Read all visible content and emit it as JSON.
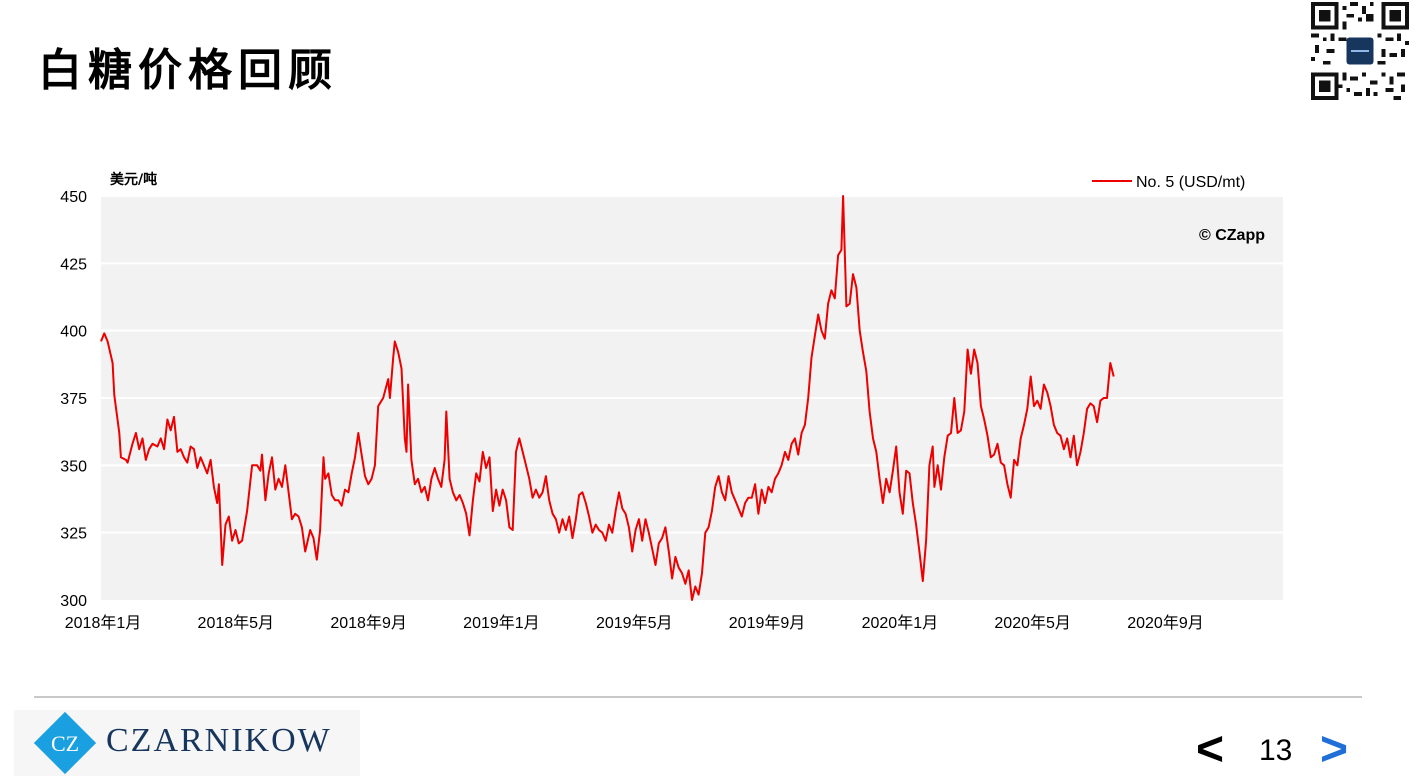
{
  "slide": {
    "title": "白糖价格回顾",
    "page_number": "13",
    "prev_label": "<",
    "next_label": ">",
    "logo_text": "CZARNIKOW",
    "logo_mark": "CZ"
  },
  "colors": {
    "series": "#ee0000",
    "plot_bg": "#f2f2f2",
    "logo_blue": "#1aa0e0",
    "logo_navy": "#17365d",
    "next_arrow": "#1f6fd6"
  },
  "chart_data": {
    "type": "line",
    "title": "",
    "ylabel": "美元/吨",
    "xlabel": "",
    "ylim": [
      300,
      450
    ],
    "yticks": [
      300,
      325,
      350,
      375,
      400,
      425,
      450
    ],
    "xlim": [
      0,
      35.6
    ],
    "xticks": [
      {
        "value": 0,
        "label": "2018年1月"
      },
      {
        "value": 4,
        "label": "2018年5月"
      },
      {
        "value": 8,
        "label": "2018年9月"
      },
      {
        "value": 12,
        "label": "2019年1月"
      },
      {
        "value": 16,
        "label": "2019年5月"
      },
      {
        "value": 20,
        "label": "2019年9月"
      },
      {
        "value": 24,
        "label": "2020年1月"
      },
      {
        "value": 28,
        "label": "2020年5月"
      },
      {
        "value": 32,
        "label": "2020年9月"
      }
    ],
    "grid": true,
    "legend_position": "top-right",
    "annotation": "© CZapp",
    "series": [
      {
        "name": "No. 5 (USD/mt)",
        "color": "#ee0000",
        "points": [
          [
            0.0,
            396
          ],
          [
            0.1,
            399
          ],
          [
            0.2,
            396
          ],
          [
            0.35,
            388
          ],
          [
            0.4,
            376
          ],
          [
            0.55,
            362
          ],
          [
            0.6,
            353
          ],
          [
            0.75,
            352
          ],
          [
            0.8,
            351
          ],
          [
            0.95,
            358
          ],
          [
            1.05,
            362
          ],
          [
            1.15,
            356
          ],
          [
            1.25,
            360
          ],
          [
            1.35,
            352
          ],
          [
            1.45,
            356
          ],
          [
            1.55,
            358
          ],
          [
            1.7,
            357
          ],
          [
            1.8,
            360
          ],
          [
            1.9,
            356
          ],
          [
            2.0,
            367
          ],
          [
            2.1,
            363
          ],
          [
            2.2,
            368
          ],
          [
            2.3,
            355
          ],
          [
            2.4,
            356
          ],
          [
            2.5,
            353
          ],
          [
            2.6,
            351
          ],
          [
            2.7,
            357
          ],
          [
            2.8,
            356
          ],
          [
            2.9,
            349
          ],
          [
            3.0,
            353
          ],
          [
            3.1,
            350
          ],
          [
            3.2,
            347
          ],
          [
            3.3,
            352
          ],
          [
            3.4,
            342
          ],
          [
            3.5,
            336
          ],
          [
            3.55,
            343
          ],
          [
            3.65,
            313
          ],
          [
            3.75,
            328
          ],
          [
            3.85,
            331
          ],
          [
            3.95,
            322
          ],
          [
            4.05,
            326
          ],
          [
            4.15,
            321
          ],
          [
            4.25,
            322
          ],
          [
            4.4,
            333
          ],
          [
            4.55,
            350
          ],
          [
            4.7,
            350
          ],
          [
            4.8,
            348
          ],
          [
            4.85,
            354
          ],
          [
            4.95,
            337
          ],
          [
            5.05,
            347
          ],
          [
            5.15,
            353
          ],
          [
            5.25,
            341
          ],
          [
            5.35,
            345
          ],
          [
            5.45,
            342
          ],
          [
            5.55,
            350
          ],
          [
            5.65,
            340
          ],
          [
            5.75,
            330
          ],
          [
            5.85,
            332
          ],
          [
            5.95,
            331
          ],
          [
            6.05,
            327
          ],
          [
            6.15,
            318
          ],
          [
            6.3,
            326
          ],
          [
            6.4,
            323
          ],
          [
            6.5,
            315
          ],
          [
            6.6,
            326
          ],
          [
            6.7,
            353
          ],
          [
            6.75,
            345
          ],
          [
            6.85,
            347
          ],
          [
            6.95,
            339
          ],
          [
            7.05,
            337
          ],
          [
            7.15,
            337
          ],
          [
            7.25,
            335
          ],
          [
            7.35,
            341
          ],
          [
            7.45,
            340
          ],
          [
            7.55,
            347
          ],
          [
            7.65,
            353
          ],
          [
            7.75,
            362
          ],
          [
            7.85,
            354
          ],
          [
            7.95,
            346
          ],
          [
            8.05,
            343
          ],
          [
            8.15,
            345
          ],
          [
            8.25,
            350
          ],
          [
            8.35,
            372
          ],
          [
            8.5,
            375
          ],
          [
            8.65,
            382
          ],
          [
            8.7,
            375
          ],
          [
            8.8,
            390
          ],
          [
            8.85,
            396
          ],
          [
            8.95,
            392
          ],
          [
            9.05,
            386
          ],
          [
            9.15,
            360
          ],
          [
            9.2,
            355
          ],
          [
            9.25,
            380
          ],
          [
            9.35,
            352
          ],
          [
            9.45,
            343
          ],
          [
            9.55,
            345
          ],
          [
            9.65,
            340
          ],
          [
            9.75,
            342
          ],
          [
            9.85,
            337
          ],
          [
            9.95,
            345
          ],
          [
            10.05,
            349
          ],
          [
            10.15,
            345
          ],
          [
            10.25,
            342
          ],
          [
            10.35,
            352
          ],
          [
            10.4,
            370
          ],
          [
            10.5,
            345
          ],
          [
            10.6,
            340
          ],
          [
            10.7,
            337
          ],
          [
            10.8,
            339
          ],
          [
            10.9,
            336
          ],
          [
            11.0,
            332
          ],
          [
            11.1,
            324
          ],
          [
            11.2,
            337
          ],
          [
            11.3,
            347
          ],
          [
            11.4,
            344
          ],
          [
            11.5,
            355
          ],
          [
            11.6,
            349
          ],
          [
            11.7,
            353
          ],
          [
            11.8,
            333
          ],
          [
            11.9,
            341
          ],
          [
            12.0,
            335
          ],
          [
            12.1,
            341
          ],
          [
            12.2,
            337
          ],
          [
            12.3,
            327
          ],
          [
            12.4,
            326
          ],
          [
            12.5,
            355
          ],
          [
            12.6,
            360
          ],
          [
            12.7,
            355
          ],
          [
            12.8,
            350
          ],
          [
            12.9,
            345
          ],
          [
            13.0,
            338
          ],
          [
            13.1,
            341
          ],
          [
            13.2,
            338
          ],
          [
            13.3,
            340
          ],
          [
            13.4,
            346
          ],
          [
            13.5,
            337
          ],
          [
            13.6,
            332
          ],
          [
            13.7,
            330
          ],
          [
            13.8,
            325
          ],
          [
            13.9,
            330
          ],
          [
            14.0,
            326
          ],
          [
            14.1,
            331
          ],
          [
            14.2,
            323
          ],
          [
            14.3,
            330
          ],
          [
            14.4,
            339
          ],
          [
            14.5,
            340
          ],
          [
            14.6,
            336
          ],
          [
            14.7,
            331
          ],
          [
            14.8,
            325
          ],
          [
            14.9,
            328
          ],
          [
            15.0,
            326
          ],
          [
            15.1,
            325
          ],
          [
            15.2,
            322
          ],
          [
            15.3,
            328
          ],
          [
            15.4,
            325
          ],
          [
            15.5,
            333
          ],
          [
            15.6,
            340
          ],
          [
            15.7,
            334
          ],
          [
            15.8,
            332
          ],
          [
            15.9,
            327
          ],
          [
            16.0,
            318
          ],
          [
            16.1,
            326
          ],
          [
            16.2,
            330
          ],
          [
            16.3,
            322
          ],
          [
            16.4,
            330
          ],
          [
            16.5,
            325
          ],
          [
            16.6,
            319
          ],
          [
            16.7,
            313
          ],
          [
            16.8,
            321
          ],
          [
            16.9,
            323
          ],
          [
            17.0,
            327
          ],
          [
            17.1,
            318
          ],
          [
            17.2,
            308
          ],
          [
            17.3,
            316
          ],
          [
            17.4,
            312
          ],
          [
            17.5,
            310
          ],
          [
            17.6,
            306
          ],
          [
            17.7,
            311
          ],
          [
            17.8,
            300
          ],
          [
            17.9,
            305
          ],
          [
            18.0,
            302
          ],
          [
            18.1,
            310
          ],
          [
            18.2,
            325
          ],
          [
            18.3,
            327
          ],
          [
            18.4,
            333
          ],
          [
            18.5,
            342
          ],
          [
            18.6,
            346
          ],
          [
            18.7,
            340
          ],
          [
            18.8,
            337
          ],
          [
            18.9,
            346
          ],
          [
            19.0,
            340
          ],
          [
            19.1,
            337
          ],
          [
            19.2,
            334
          ],
          [
            19.3,
            331
          ],
          [
            19.4,
            336
          ],
          [
            19.5,
            338
          ],
          [
            19.6,
            338
          ],
          [
            19.7,
            343
          ],
          [
            19.8,
            332
          ],
          [
            19.9,
            341
          ],
          [
            20.0,
            336
          ],
          [
            20.1,
            342
          ],
          [
            20.2,
            340
          ],
          [
            20.3,
            345
          ],
          [
            20.4,
            347
          ],
          [
            20.5,
            350
          ],
          [
            20.6,
            355
          ],
          [
            20.7,
            352
          ],
          [
            20.8,
            358
          ],
          [
            20.9,
            360
          ],
          [
            21.0,
            354
          ],
          [
            21.1,
            362
          ],
          [
            21.2,
            365
          ],
          [
            21.3,
            375
          ],
          [
            21.4,
            390
          ],
          [
            21.5,
            398
          ],
          [
            21.6,
            406
          ],
          [
            21.7,
            400
          ],
          [
            21.8,
            397
          ],
          [
            21.9,
            410
          ],
          [
            22.0,
            415
          ],
          [
            22.1,
            412
          ],
          [
            22.2,
            428
          ],
          [
            22.3,
            430
          ],
          [
            22.35,
            450
          ],
          [
            22.45,
            409
          ],
          [
            22.55,
            410
          ],
          [
            22.65,
            421
          ],
          [
            22.75,
            416
          ],
          [
            22.85,
            400
          ],
          [
            22.95,
            392
          ],
          [
            23.05,
            385
          ],
          [
            23.15,
            370
          ],
          [
            23.25,
            360
          ],
          [
            23.35,
            355
          ],
          [
            23.45,
            345
          ],
          [
            23.55,
            336
          ],
          [
            23.65,
            345
          ],
          [
            23.75,
            340
          ],
          [
            23.85,
            348
          ],
          [
            23.95,
            357
          ],
          [
            24.05,
            340
          ],
          [
            24.15,
            332
          ],
          [
            24.25,
            348
          ],
          [
            24.35,
            347
          ],
          [
            24.45,
            336
          ],
          [
            24.55,
            328
          ],
          [
            24.65,
            318
          ],
          [
            24.75,
            307
          ],
          [
            24.85,
            322
          ],
          [
            24.95,
            350
          ],
          [
            25.05,
            357
          ],
          [
            25.1,
            342
          ],
          [
            25.2,
            350
          ],
          [
            25.3,
            341
          ],
          [
            25.4,
            353
          ],
          [
            25.5,
            361
          ],
          [
            25.6,
            362
          ],
          [
            25.7,
            375
          ],
          [
            25.8,
            362
          ],
          [
            25.9,
            363
          ],
          [
            26.0,
            370
          ],
          [
            26.1,
            393
          ],
          [
            26.2,
            384
          ],
          [
            26.3,
            393
          ],
          [
            26.4,
            388
          ],
          [
            26.5,
            372
          ],
          [
            26.6,
            367
          ],
          [
            26.7,
            361
          ],
          [
            26.8,
            353
          ],
          [
            26.9,
            354
          ],
          [
            27.0,
            358
          ],
          [
            27.1,
            351
          ],
          [
            27.2,
            350
          ],
          [
            27.3,
            343
          ],
          [
            27.4,
            338
          ],
          [
            27.5,
            352
          ],
          [
            27.6,
            350
          ],
          [
            27.7,
            360
          ],
          [
            27.8,
            365
          ],
          [
            27.9,
            371
          ],
          [
            28.0,
            383
          ],
          [
            28.1,
            372
          ],
          [
            28.2,
            374
          ],
          [
            28.3,
            371
          ],
          [
            28.4,
            380
          ],
          [
            28.5,
            377
          ],
          [
            28.6,
            372
          ],
          [
            28.7,
            365
          ],
          [
            28.8,
            362
          ],
          [
            28.9,
            361
          ],
          [
            29.0,
            356
          ],
          [
            29.1,
            360
          ],
          [
            29.2,
            353
          ],
          [
            29.3,
            361
          ],
          [
            29.4,
            350
          ],
          [
            29.5,
            355
          ],
          [
            29.6,
            362
          ],
          [
            29.7,
            371
          ],
          [
            29.8,
            373
          ],
          [
            29.9,
            372
          ],
          [
            30.0,
            366
          ],
          [
            30.1,
            374
          ],
          [
            30.2,
            375
          ],
          [
            30.3,
            375
          ],
          [
            30.4,
            388
          ],
          [
            30.5,
            383
          ]
        ]
      }
    ]
  }
}
